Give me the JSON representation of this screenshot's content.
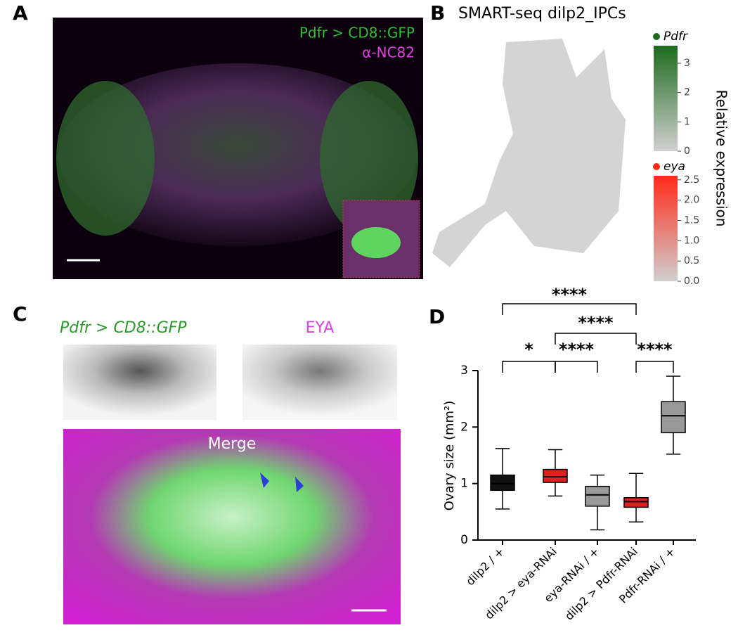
{
  "panel_a": {
    "label": "A",
    "legend": [
      "Pdfr > CD8::GFP",
      "α-NC82"
    ]
  },
  "panel_b": {
    "label": "B",
    "title": "SMART-seq dilp2_IPCs",
    "axis_label": "Relative expression",
    "colorbars": [
      {
        "name": "Pdfr",
        "color": "#1e6b1e",
        "lim": [
          0,
          3.6
        ],
        "ticks": [
          0,
          1,
          2,
          3
        ]
      },
      {
        "name": "eya",
        "color": "#ff2a1a",
        "lim": [
          0,
          2.6
        ],
        "ticks": [
          {
            "value": 0,
            "label": "0.0"
          },
          {
            "value": 0.5,
            "label": "0.5"
          },
          {
            "value": 1,
            "label": "1.0"
          },
          {
            "value": 1.5,
            "label": "1.5"
          },
          {
            "value": 2,
            "label": "2.0"
          },
          {
            "value": 2.5,
            "label": "2.5"
          }
        ]
      }
    ]
  },
  "panel_c": {
    "label": "C",
    "channels": [
      "Pdfr > CD8::GFP",
      "EYA"
    ],
    "merge": "Merge"
  },
  "chart_data": {
    "type": "box",
    "label": "D",
    "y_label": "Ovary size (mm²)",
    "categories": [
      "dilp2 / +",
      "dilp2 > eya-RNAi",
      "eya-RNAi / +",
      "dilp2 > Pdfr-RNAi",
      "Pdfr-RNAi / +"
    ],
    "colors": [
      "#111111",
      "#e0201c",
      "#999999",
      "#e0201c",
      "#999999"
    ],
    "stats": [
      {
        "min": 0.55,
        "q1": 0.88,
        "median": 1.0,
        "q3": 1.15,
        "max": 1.62
      },
      {
        "min": 0.78,
        "q1": 1.02,
        "median": 1.12,
        "q3": 1.25,
        "max": 1.6
      },
      {
        "min": 0.18,
        "q1": 0.6,
        "median": 0.8,
        "q3": 0.95,
        "max": 1.15
      },
      {
        "min": 0.32,
        "q1": 0.58,
        "median": 0.68,
        "q3": 0.75,
        "max": 1.18
      },
      {
        "min": 1.52,
        "q1": 1.9,
        "median": 2.2,
        "q3": 2.45,
        "max": 2.9
      }
    ],
    "ylim": [
      0,
      3
    ],
    "yticks": [
      0,
      1,
      2,
      3
    ],
    "significance": [
      "****",
      "****",
      "*",
      "****",
      "****"
    ]
  }
}
